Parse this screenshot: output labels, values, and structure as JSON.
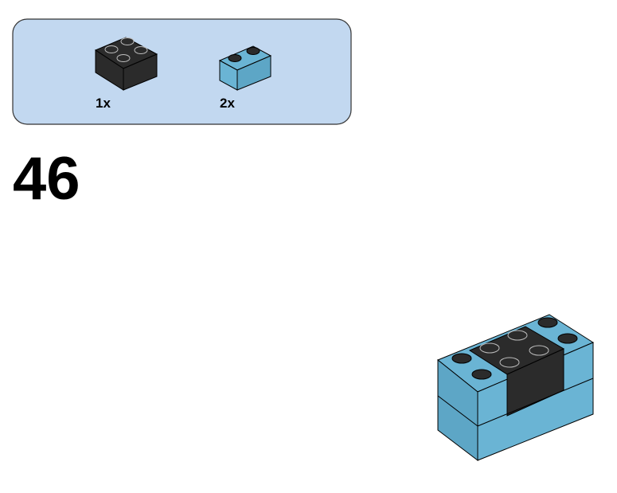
{
  "parts": [
    {
      "quantity": "1x"
    },
    {
      "quantity": "2x"
    }
  ],
  "step": "46"
}
